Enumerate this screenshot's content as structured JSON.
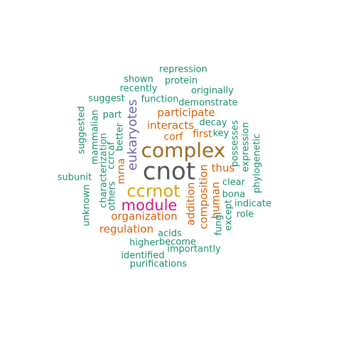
{
  "colors": {
    "dark_gray": "#555555",
    "olive_brown": "#9b6a1f",
    "gold": "#d9a411",
    "magenta": "#d4137f",
    "purple": "#6d62ad",
    "orange_red": "#d45f0a",
    "teal_green": "#1a8f6e"
  },
  "words": [
    {
      "text": "cnot",
      "color": "dark_gray"
    },
    {
      "text": "complex",
      "color": "olive_brown"
    },
    {
      "text": "ccrnot",
      "color": "gold"
    },
    {
      "text": "module",
      "color": "magenta"
    },
    {
      "text": "eukaryotes",
      "color": "purple"
    },
    {
      "text": "participate",
      "color": "orange_red"
    },
    {
      "text": "interacts",
      "color": "orange_red"
    },
    {
      "text": "organization",
      "color": "orange_red"
    },
    {
      "text": "regulation",
      "color": "orange_red"
    },
    {
      "text": "composition",
      "color": "orange_red"
    },
    {
      "text": "addition",
      "color": "orange_red"
    },
    {
      "text": "human",
      "color": "orange_red"
    },
    {
      "text": "thus",
      "color": "orange_red"
    },
    {
      "text": "first",
      "color": "orange_red"
    },
    {
      "text": "corf",
      "color": "orange_red"
    },
    {
      "text": "mrna",
      "color": "orange_red"
    },
    {
      "text": "repression",
      "color": "teal_green"
    },
    {
      "text": "protein",
      "color": "teal_green"
    },
    {
      "text": "shown",
      "color": "teal_green"
    },
    {
      "text": "recently",
      "color": "teal_green"
    },
    {
      "text": "originally",
      "color": "teal_green"
    },
    {
      "text": "suggest",
      "color": "teal_green"
    },
    {
      "text": "function",
      "color": "teal_green"
    },
    {
      "text": "demonstrate",
      "color": "teal_green"
    },
    {
      "text": "part",
      "color": "teal_green"
    },
    {
      "text": "decay",
      "color": "teal_green"
    },
    {
      "text": "key",
      "color": "teal_green"
    },
    {
      "text": "suggested",
      "color": "teal_green"
    },
    {
      "text": "mammalian",
      "color": "teal_green"
    },
    {
      "text": "better",
      "color": "teal_green"
    },
    {
      "text": "characterization",
      "color": "teal_green"
    },
    {
      "text": "ccrcaf",
      "color": "teal_green"
    },
    {
      "text": "others",
      "color": "teal_green"
    },
    {
      "text": "possesses",
      "color": "teal_green"
    },
    {
      "text": "expression",
      "color": "teal_green"
    },
    {
      "text": "phylogenetic",
      "color": "teal_green"
    },
    {
      "text": "subunit",
      "color": "teal_green"
    },
    {
      "text": "clear",
      "color": "teal_green"
    },
    {
      "text": "bona",
      "color": "teal_green"
    },
    {
      "text": "indicate",
      "color": "teal_green"
    },
    {
      "text": "unknown",
      "color": "teal_green"
    },
    {
      "text": "except",
      "color": "teal_green"
    },
    {
      "text": "fungi",
      "color": "teal_green"
    },
    {
      "text": "role",
      "color": "teal_green"
    },
    {
      "text": "acids",
      "color": "teal_green"
    },
    {
      "text": "become",
      "color": "teal_green"
    },
    {
      "text": "higher",
      "color": "teal_green"
    },
    {
      "text": "importantly",
      "color": "teal_green"
    },
    {
      "text": "identified",
      "color": "teal_green"
    },
    {
      "text": "purifications",
      "color": "teal_green"
    }
  ]
}
